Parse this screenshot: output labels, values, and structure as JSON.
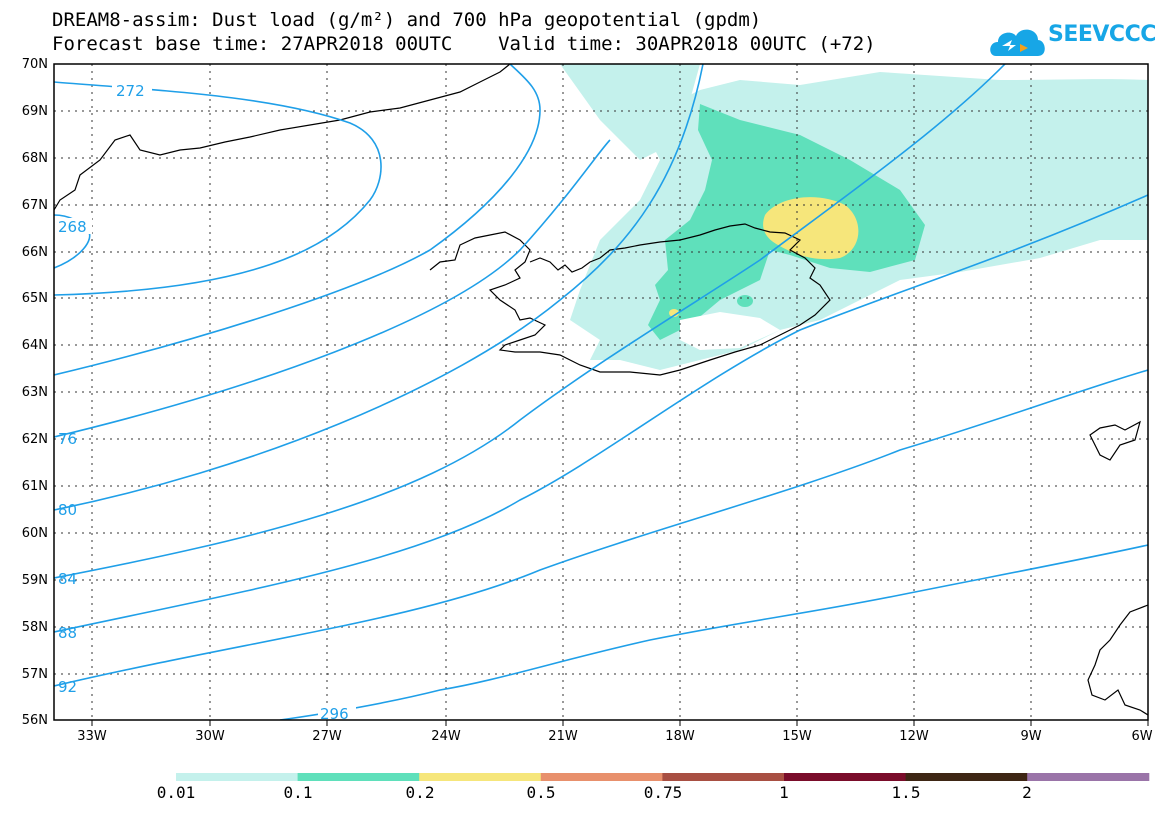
{
  "header": {
    "title_line1": "DREAM8-assim: Dust load (g/m²) and 700 hPa geopotential (gpdm)",
    "title_line2": "Forecast base time: 27APR2018 00UTC    Valid time: 30APR2018 00UTC (+72)",
    "logo_text": "SEEVCCC"
  },
  "map": {
    "lat_labels": [
      "70N",
      "69N",
      "68N",
      "67N",
      "66N",
      "65N",
      "64N",
      "63N",
      "62N",
      "61N",
      "60N",
      "59N",
      "58N",
      "57N",
      "56N"
    ],
    "lon_labels": [
      "33W",
      "30W",
      "27W",
      "24W",
      "21W",
      "18W",
      "15W",
      "12W",
      "9W",
      "6W"
    ],
    "contour_labels": [
      "272",
      "268",
      "76",
      "80",
      "84",
      "88",
      "92",
      "296"
    ],
    "contour_color": "#1f9fe8"
  },
  "colorbar": {
    "levels": [
      "0.01",
      "0.1",
      "0.2",
      "0.5",
      "0.75",
      "1",
      "1.5",
      "2"
    ],
    "colors": [
      "#c4f1ec",
      "#5fe0bb",
      "#f6e67b",
      "#e8906c",
      "#a84f42",
      "#7a0c2a",
      "#3e2614",
      "#9a74a8"
    ]
  }
}
